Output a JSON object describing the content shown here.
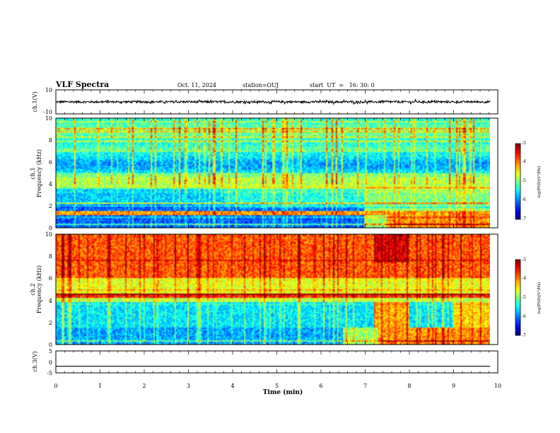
{
  "header": {
    "title": "VLF Spectra",
    "date": "Oct. 11, 2024",
    "station": "station=OUJ",
    "start": "start  UT  =   16: 30: 0"
  },
  "colors": {
    "trace": "#000000",
    "axis": "#000000"
  },
  "chart_data": [
    {
      "type": "line",
      "panel": "ch1-waveform",
      "ylabel": "ch.1(V)",
      "ylim": [
        -10,
        10
      ],
      "yticks": [
        "10",
        "-10"
      ],
      "xlim": [
        0,
        10
      ],
      "series": [
        {
          "mean": 0,
          "amplitude_range": [
            -1.5,
            1.5
          ]
        }
      ]
    },
    {
      "type": "heatmap",
      "panel": "ch1-spectrogram",
      "ylabel_top": "ch.1",
      "ylabel": "Frequency (kHz)",
      "ylim": [
        0,
        10
      ],
      "yticks": [
        "0",
        "2",
        "4",
        "6",
        "8",
        "10"
      ],
      "xlim": [
        0,
        9.83
      ],
      "colorbar": {
        "label": "log(PSD)(V²/Hz)",
        "range": [
          -7,
          -3
        ],
        "ticks": [
          "-3",
          "-4",
          "-5",
          "-6",
          "-7"
        ]
      }
    },
    {
      "type": "heatmap",
      "panel": "ch2-spectrogram",
      "ylabel_top": "ch.2",
      "ylabel": "Frequency (kHz)",
      "ylim": [
        0,
        10
      ],
      "yticks": [
        "0",
        "2",
        "4",
        "6",
        "8",
        "10"
      ],
      "xlim": [
        0,
        9.83
      ],
      "colorbar": {
        "label": "log(PSD)(V²/Hz)",
        "range": [
          -7,
          -3
        ],
        "ticks": [
          "-3",
          "-4",
          "-5",
          "-6",
          "-7"
        ]
      }
    },
    {
      "type": "line",
      "panel": "ch3-waveform",
      "ylabel": "ch.3(V)",
      "ylim": [
        -5,
        5
      ],
      "yticks": [
        "5",
        "0",
        "-5"
      ],
      "xlim": [
        0,
        10
      ],
      "series": [
        {
          "value": -2
        }
      ]
    }
  ],
  "xaxis": {
    "label": "Time (min)",
    "ticks": [
      "0",
      "1",
      "2",
      "3",
      "4",
      "5",
      "6",
      "7",
      "8",
      "9",
      "10"
    ]
  }
}
